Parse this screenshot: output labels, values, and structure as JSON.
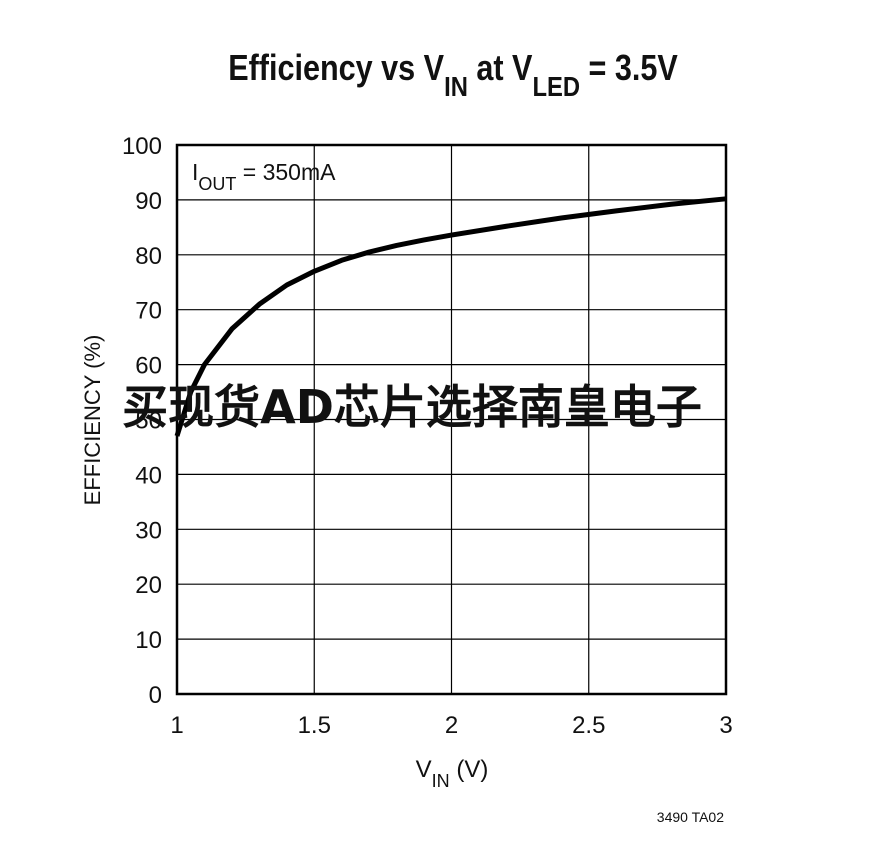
{
  "chart_data": {
    "type": "line",
    "title": [
      {
        "text": "Efficiency vs V"
      },
      {
        "text": "IN",
        "sub": true
      },
      {
        "text": " at V"
      },
      {
        "text": "LED",
        "sub": true
      },
      {
        "text": " = 3.5V"
      }
    ],
    "annotation": [
      {
        "text": "I"
      },
      {
        "text": "OUT",
        "sub": true
      },
      {
        "text": " = 350mA"
      }
    ],
    "x_label": [
      {
        "text": "V"
      },
      {
        "text": "IN",
        "sub": true
      },
      {
        "text": " (V)"
      }
    ],
    "y_label": "EFFICIENCY (%)",
    "footnote": "3490 TA02",
    "watermark": "买现货AD芯片选择南皇电子",
    "x": [
      1,
      1.05,
      1.1,
      1.2,
      1.3,
      1.4,
      1.5,
      1.6,
      1.7,
      1.8,
      1.9,
      2.0,
      2.2,
      2.4,
      2.6,
      2.8,
      3.0
    ],
    "series": [
      {
        "color": "#000000",
        "values": [
          47,
          55,
          60,
          66.5,
          71,
          74.5,
          77,
          79,
          80.5,
          81.7,
          82.7,
          83.6,
          85.2,
          86.7,
          88,
          89.2,
          90.2
        ]
      }
    ],
    "xlim": [
      1,
      3
    ],
    "xticks": [
      1,
      1.5,
      2,
      2.5,
      3
    ],
    "ylim": [
      0,
      100
    ],
    "yticks": [
      0,
      10,
      20,
      30,
      40,
      50,
      60,
      70,
      80,
      90,
      100
    ],
    "grid": true
  }
}
